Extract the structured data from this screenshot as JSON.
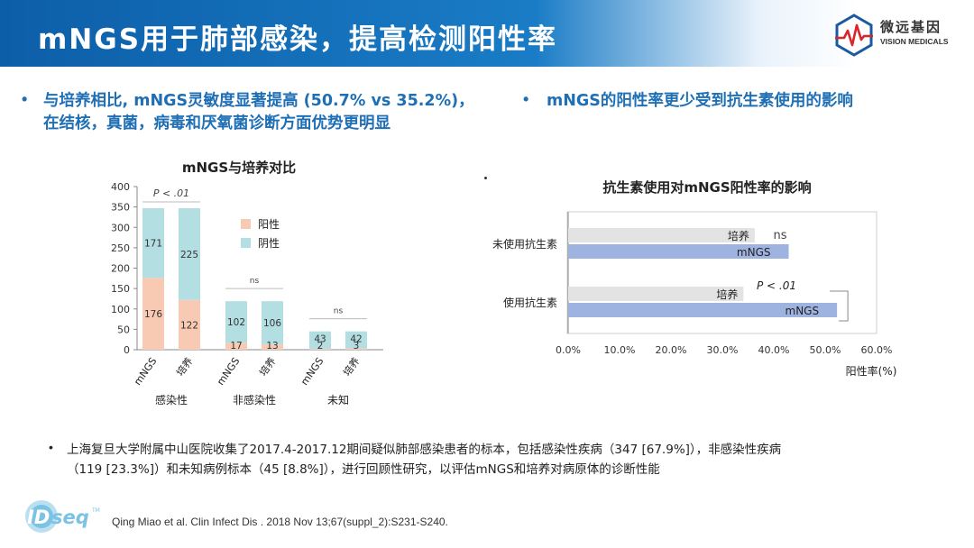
{
  "header": {
    "title": "mNGS用于肺部感染，提高检测阳性率"
  },
  "logo": {
    "cn": "微远基因",
    "en": "VISION MEDICALS"
  },
  "left_bullet": {
    "line1": "与培养相比, mNGS灵敏度显著提高 (50.7% vs 35.2%)，",
    "line2": "在结核，真菌，病毒和厌氧菌诊断方面优势更明显"
  },
  "right_bullet": {
    "text": "mNGS的阳性率更少受到抗生素使用的影响"
  },
  "note": {
    "line1": "上海复旦大学附属中山医院收集了2017.4-2017.12期间疑似肺部感染患者的标本，包括感染性疾病（347 [67.9%]），非感染性疾病",
    "line2": "（119 [23.3%]）和未知病例标本（45 [8.8%]），进行回顾性研究，以评估mNGS和培养对病原体的诊断性能"
  },
  "citation": "Qing Miao et al. Clin Infect  Dis . 2018 Nov 13;67(suppl_2):S231-S240.",
  "idseq_logo": "IDseq",
  "colors": {
    "positive": "#f8c9b3",
    "negative": "#b3dfe3",
    "culture": "#e3e3e3",
    "mngs": "#9fb3e0",
    "accent": "#1f6fb5"
  },
  "chart_data": [
    {
      "type": "bar",
      "stacked": true,
      "title": "mNGS与培养对比",
      "ylim": [
        0,
        400
      ],
      "yticks": [
        0,
        50,
        100,
        150,
        200,
        250,
        300,
        350,
        400
      ],
      "groups": [
        {
          "label": "感染性",
          "annotation": "P < .01",
          "bars": [
            {
              "label": "mNGS",
              "positive": 176,
              "negative": 171
            },
            {
              "label": "培养",
              "positive": 122,
              "negative": 225
            }
          ]
        },
        {
          "label": "非感染性",
          "annotation": "ns",
          "bars": [
            {
              "label": "mNGS",
              "positive": 17,
              "negative": 102
            },
            {
              "label": "培养",
              "positive": 13,
              "negative": 106
            }
          ]
        },
        {
          "label": "未知",
          "annotation": "ns",
          "bars": [
            {
              "label": "mNGS",
              "positive": 2,
              "negative": 43
            },
            {
              "label": "培养",
              "positive": 3,
              "negative": 42
            }
          ]
        }
      ],
      "series": [
        {
          "name": "阳性",
          "key": "positive"
        },
        {
          "name": "阴性",
          "key": "negative"
        }
      ],
      "legend": "top-right"
    },
    {
      "type": "bar",
      "orientation": "horizontal",
      "title": "抗生素使用对mNGS阳性率的影响",
      "xlabel": "阳性率(%)",
      "xlim": [
        0,
        60
      ],
      "xticks": [
        "0.0%",
        "10.0%",
        "20.0%",
        "30.0%",
        "40.0%",
        "50.0%",
        "60.0%"
      ],
      "categories": [
        "未使用抗生素",
        "使用抗生素"
      ],
      "series": [
        {
          "name": "培养",
          "values": [
            36.3,
            34.1
          ]
        },
        {
          "name": "mNGS",
          "values": [
            42.9,
            52.3
          ]
        }
      ],
      "annotations": [
        "ns",
        "P < .01"
      ],
      "grid": false
    }
  ]
}
